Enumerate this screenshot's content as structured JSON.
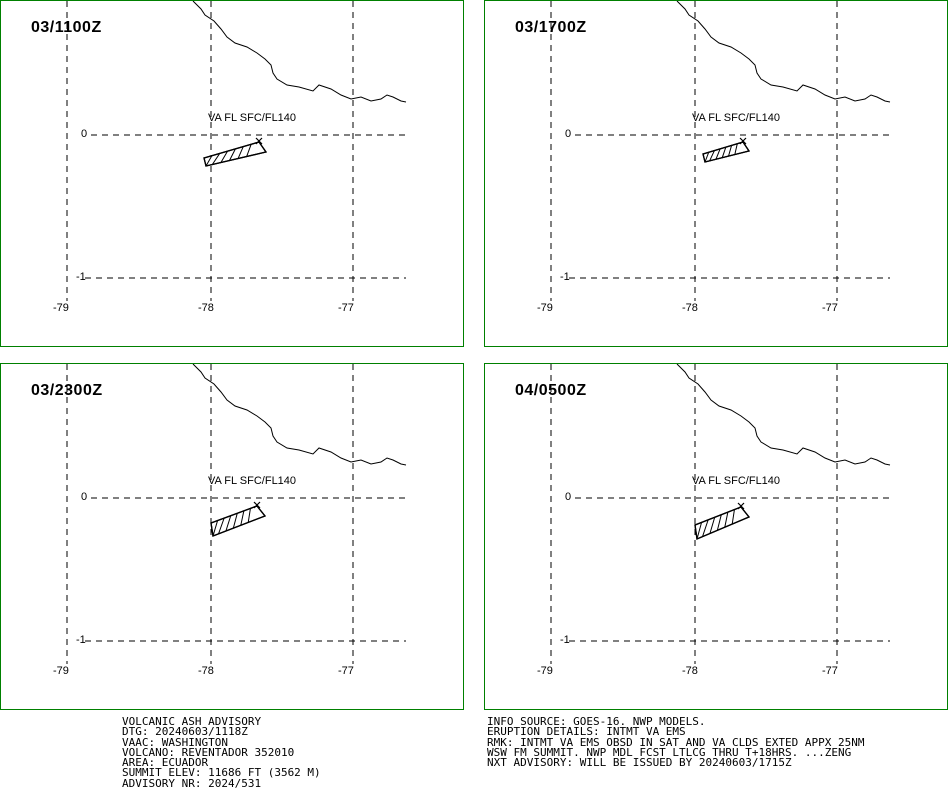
{
  "panels": [
    {
      "time": "03/1100Z",
      "va_label": "VA FL SFC/FL140",
      "plume": "A"
    },
    {
      "time": "03/1700Z",
      "va_label": "VA FL SFC/FL140",
      "plume": "B"
    },
    {
      "time": "03/2300Z",
      "va_label": "VA FL SFC/FL140",
      "plume": "C"
    },
    {
      "time": "04/0500Z",
      "va_label": "VA FL SFC/FL140",
      "plume": "D"
    }
  ],
  "grid": {
    "lat_labels": [
      "0",
      "-1"
    ],
    "lon_labels": [
      "-79",
      "-78",
      "-77"
    ]
  },
  "colors": {
    "frame": "#008000",
    "lines": "#000000",
    "background": "#ffffff"
  },
  "advisory_left": [
    "VOLCANIC ASH ADVISORY",
    "DTG: 20240603/1118Z",
    "VAAC: WASHINGTON",
    "VOLCANO: REVENTADOR 352010",
    "AREA: ECUADOR",
    "SUMMIT ELEV: 11686 FT (3562 M)",
    "ADVISORY NR: 2024/531"
  ],
  "advisory_right": [
    "INFO SOURCE: GOES-16. NWP MODELS.",
    "ERUPTION DETAILS: INTMT VA EMS",
    "RMK: INTMT VA EMS OBSD IN SAT AND VA CLDS EXTED APPX 25NM",
    "WSW FM SUMMIT. NWP MDL FCST LTLCG THRU T+18HRS. ...ZENG",
    "NXT ADVISORY: WILL BE ISSUED BY 20240603/1715Z"
  ]
}
